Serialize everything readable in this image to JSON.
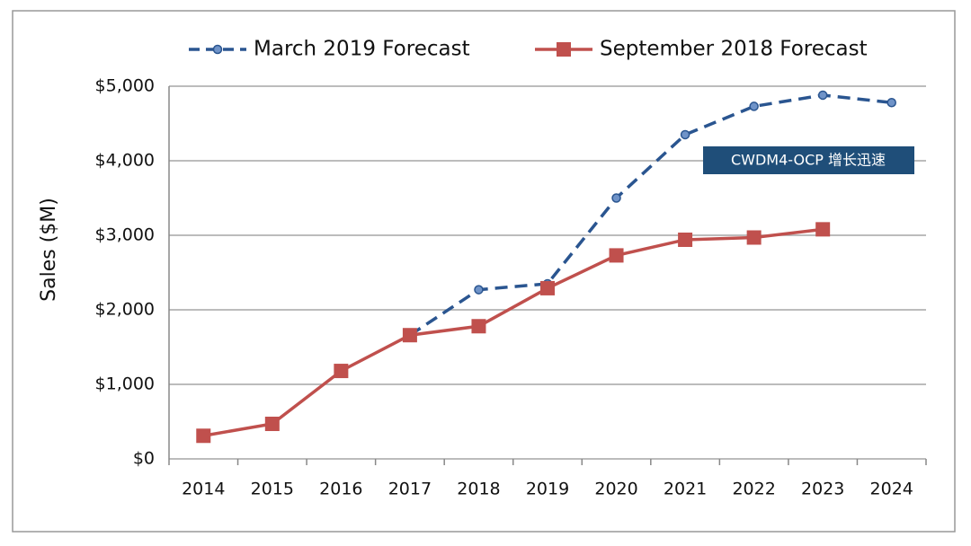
{
  "chart_data": {
    "type": "line",
    "ylabel": "Sales ($M)",
    "categories": [
      "2014",
      "2015",
      "2016",
      "2017",
      "2018",
      "2019",
      "2020",
      "2021",
      "2022",
      "2023",
      "2024"
    ],
    "series": [
      {
        "name": "March 2019 Forecast",
        "color": "#2a5590",
        "dashed": true,
        "marker": "circle",
        "values": [
          null,
          null,
          null,
          1660,
          2270,
          2350,
          3500,
          4350,
          4730,
          4880,
          4780
        ]
      },
      {
        "name": "September 2018 Forecast",
        "color": "#c0504d",
        "dashed": false,
        "marker": "square",
        "values": [
          310,
          470,
          1180,
          1660,
          1780,
          2290,
          2730,
          2940,
          2970,
          3080,
          null
        ]
      }
    ],
    "ylim": [
      0,
      5000
    ],
    "yticks": [
      {
        "value": 0,
        "label": "$0"
      },
      {
        "value": 1000,
        "label": "$1,000"
      },
      {
        "value": 2000,
        "label": "$2,000"
      },
      {
        "value": 3000,
        "label": "$3,000"
      },
      {
        "value": 4000,
        "label": "$4,000"
      },
      {
        "value": 5000,
        "label": "$5,000"
      }
    ],
    "grid": true,
    "legend": "top",
    "annotation": "CWDM4-OCP 增长迅速"
  }
}
